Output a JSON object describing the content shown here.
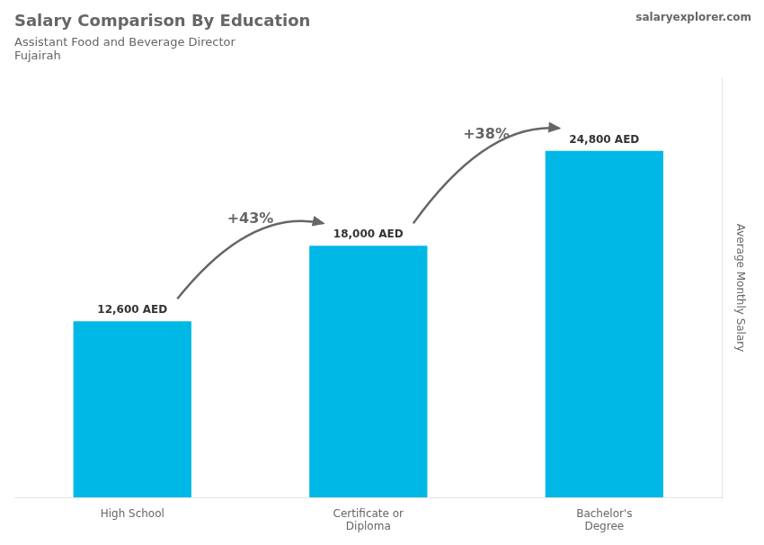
{
  "chart_data": {
    "type": "bar",
    "title": "Salary Comparison By Education",
    "subtitle": "Assistant Food and Beverage Director",
    "location": "Fujairah",
    "website": "salaryexplorer.com",
    "ylabel": "Average Monthly Salary",
    "categories": [
      "High School",
      "Certificate or\nDiploma",
      "Bachelor's\nDegree"
    ],
    "values": [
      12600,
      18000,
      24800
    ],
    "value_labels": [
      "12,600 AED",
      "18,000 AED",
      "24,800 AED"
    ],
    "pct_labels": [
      "+43%",
      "+38%"
    ],
    "color": "#00b8e6",
    "ylim": [
      0,
      30000
    ],
    "grid": false,
    "data_labels": true,
    "tick_labels": "x"
  }
}
